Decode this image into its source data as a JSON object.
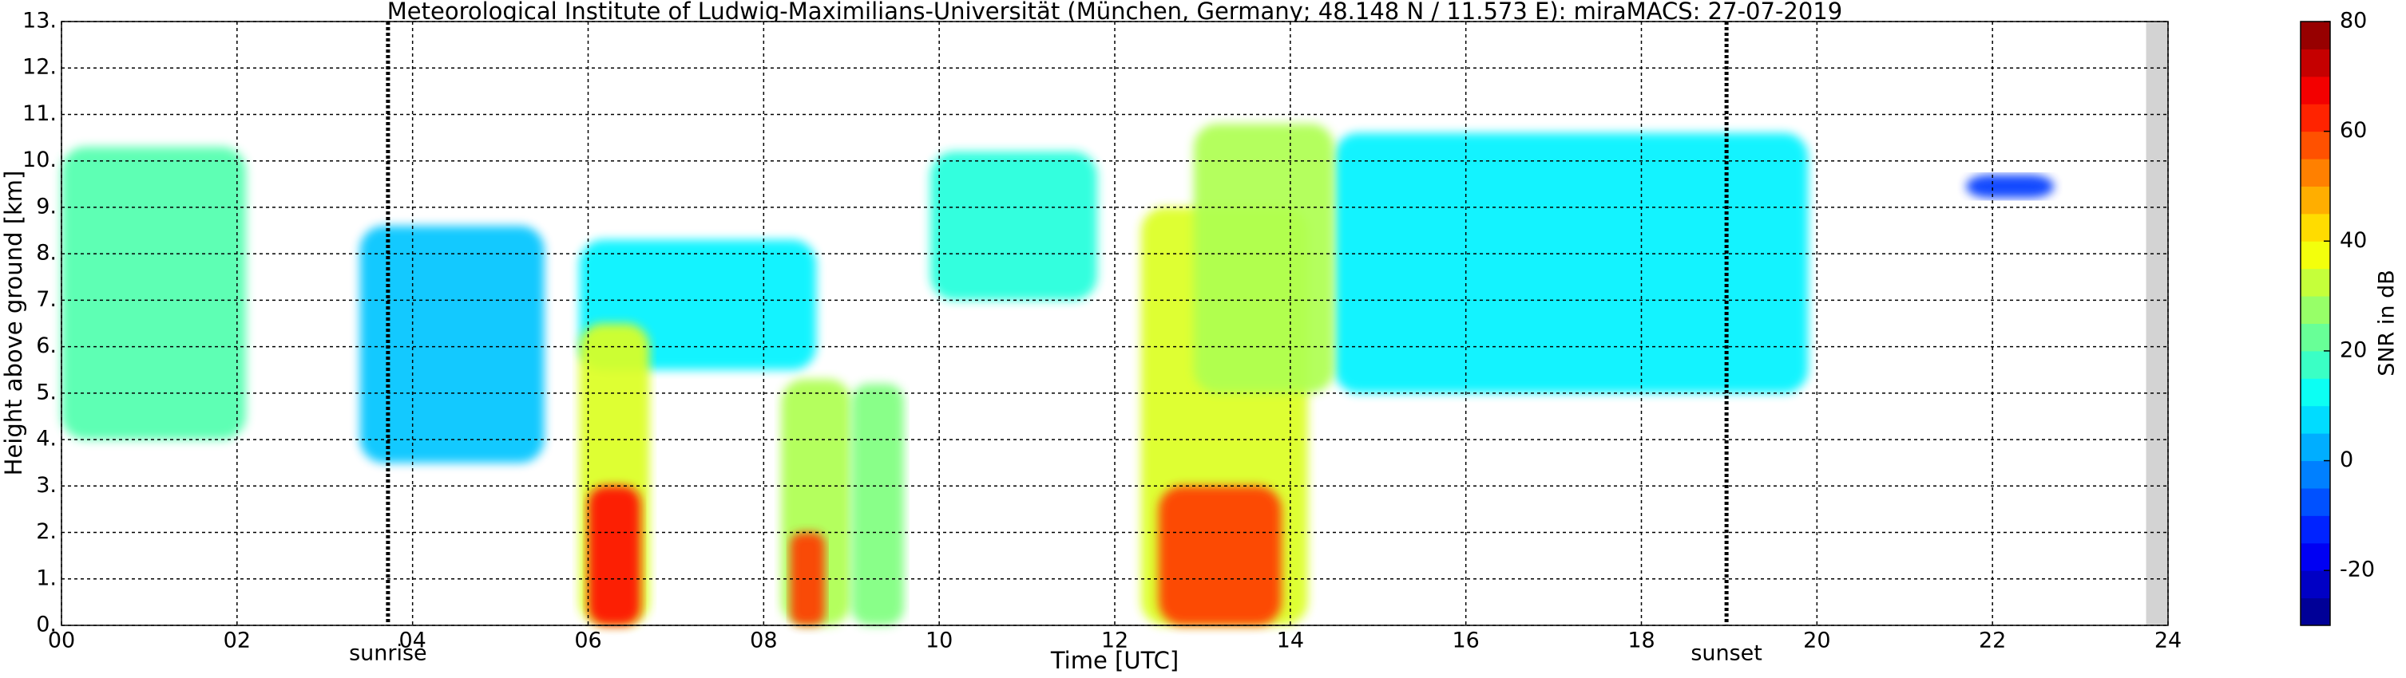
{
  "chart_data": {
    "type": "radar-echo",
    "title": "Meteorological Institute of Ludwig-Maximilians-Universität (München, Germany; 48.148 N / 11.573 E):    miraMACS: 27-07-2019",
    "xlabel": "Time [UTC]",
    "ylabel": "Height above ground [km]",
    "colorbar_label": "SNR in dB",
    "xlim": [
      0,
      24
    ],
    "xticks": [
      {
        "value": 0,
        "label": "00"
      },
      {
        "value": 2,
        "label": "02"
      },
      {
        "value": 4,
        "label": "04"
      },
      {
        "value": 6,
        "label": "06"
      },
      {
        "value": 8,
        "label": "08"
      },
      {
        "value": 10,
        "label": "10"
      },
      {
        "value": 12,
        "label": "12"
      },
      {
        "value": 14,
        "label": "14"
      },
      {
        "value": 16,
        "label": "16"
      },
      {
        "value": 18,
        "label": "18"
      },
      {
        "value": 20,
        "label": "20"
      },
      {
        "value": 22,
        "label": "22"
      },
      {
        "value": 24,
        "label": "24"
      }
    ],
    "ylim": [
      0,
      13
    ],
    "yticks": [
      {
        "value": 0,
        "label": "0."
      },
      {
        "value": 1,
        "label": "1."
      },
      {
        "value": 2,
        "label": "2."
      },
      {
        "value": 3,
        "label": "3."
      },
      {
        "value": 4,
        "label": "4."
      },
      {
        "value": 5,
        "label": "5."
      },
      {
        "value": 6,
        "label": "6."
      },
      {
        "value": 7,
        "label": "7."
      },
      {
        "value": 8,
        "label": "8."
      },
      {
        "value": 9,
        "label": "9."
      },
      {
        "value": 10,
        "label": "10."
      },
      {
        "value": 11,
        "label": "11."
      },
      {
        "value": 12,
        "label": "12."
      },
      {
        "value": 13,
        "label": "13."
      }
    ],
    "clim": [
      -30,
      80
    ],
    "cticks": [
      -20,
      0,
      20,
      40,
      60,
      80
    ],
    "colormap": "jet",
    "grid": true,
    "markers": [
      {
        "label": "sunrise",
        "x": 3.72
      },
      {
        "label": "sunset",
        "x": 18.97
      }
    ],
    "echoes": [
      {
        "x": [
          0,
          2.1
        ],
        "y": [
          4,
          10.3
        ],
        "snr": 20
      },
      {
        "x": [
          3.4,
          5.5
        ],
        "y": [
          3.5,
          8.6
        ],
        "snr": 5
      },
      {
        "x": [
          5.9,
          8.6
        ],
        "y": [
          5.5,
          8.3
        ],
        "snr": 10
      },
      {
        "x": [
          5.9,
          6.7
        ],
        "y": [
          0,
          6.5
        ],
        "snr": 35
      },
      {
        "x": [
          6.0,
          6.6
        ],
        "y": [
          0,
          3
        ],
        "snr": 65
      },
      {
        "x": [
          8.2,
          9.0
        ],
        "y": [
          0,
          5.3
        ],
        "snr": 30
      },
      {
        "x": [
          8.3,
          8.7
        ],
        "y": [
          0,
          2
        ],
        "snr": 60
      },
      {
        "x": [
          9.0,
          9.6
        ],
        "y": [
          0,
          5.2
        ],
        "snr": 25
      },
      {
        "x": [
          9.9,
          11.8
        ],
        "y": [
          7,
          10.2
        ],
        "snr": 15
      },
      {
        "x": [
          14.5,
          19.9
        ],
        "y": [
          5,
          10.6
        ],
        "snr": 10
      },
      {
        "x": [
          12.3,
          14.2
        ],
        "y": [
          0,
          9
        ],
        "snr": 35
      },
      {
        "x": [
          12.9,
          14.5
        ],
        "y": [
          5,
          10.8
        ],
        "snr": 30
      },
      {
        "x": [
          12.5,
          13.9
        ],
        "y": [
          0,
          3
        ],
        "snr": 60
      },
      {
        "x": [
          21.7,
          22.7
        ],
        "y": [
          9.2,
          9.7
        ],
        "snr": -10
      }
    ]
  }
}
